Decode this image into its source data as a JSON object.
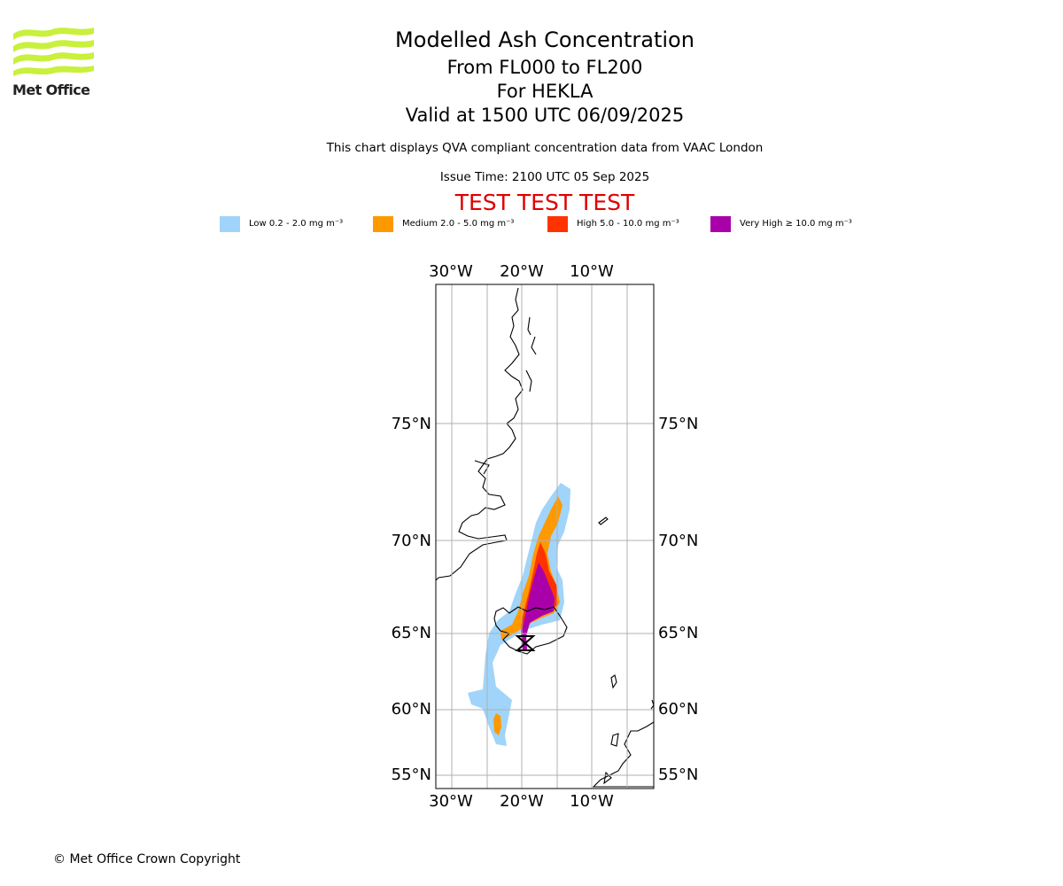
{
  "logo": {
    "text": "Met Office",
    "color": "#c8f03c"
  },
  "title": "Modelled Ash Concentration",
  "subtitle_lines": [
    "From FL000 to FL200",
    "For HEKLA",
    "Valid at 1500 UTC 06/09/2025"
  ],
  "notes": [
    "This chart displays QVA compliant concentration data from VAAC London",
    "Issue Time: 2100 UTC 05 Sep 2025"
  ],
  "test_banner": "TEST TEST TEST",
  "legend": [
    {
      "label": "Low 0.2 - 2.0 mg m⁻³",
      "color": "#a0d4fa"
    },
    {
      "label": "Medium 2.0 - 5.0 mg m⁻³",
      "color": "#ff9900"
    },
    {
      "label": "High 5.0 - 10.0 mg m⁻³",
      "color": "#ff3300"
    },
    {
      "label": "Very High ≥ 10.0 mg m⁻³",
      "color": "#aa00aa"
    }
  ],
  "map": {
    "lon_labels": [
      "30°W",
      "20°W",
      "10°W"
    ],
    "lat_labels": [
      "75°N",
      "70°N",
      "65°N",
      "60°N",
      "55°N"
    ],
    "volcano": "HEKLA"
  },
  "copyright": "© Met Office Crown Copyright"
}
